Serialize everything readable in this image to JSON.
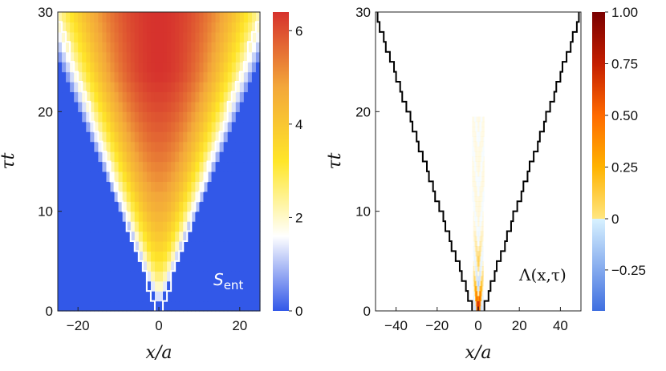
{
  "chart_data": [
    {
      "type": "heatmap",
      "title": "",
      "xlabel": "x/a",
      "ylabel": "τt",
      "xlim": [
        -25,
        25
      ],
      "ylim": [
        0,
        30
      ],
      "xticks": [
        "−20",
        "0",
        "20"
      ],
      "xtick_values": [
        -20,
        0,
        20
      ],
      "yticks": [
        "0",
        "10",
        "20",
        "30"
      ],
      "ytick_values": [
        0,
        10,
        20,
        30
      ],
      "annotation": "S",
      "annotation_sub": "ent",
      "lightcone_color": "#ffffff",
      "colorbar": {
        "min": 0,
        "max": 6.4,
        "ticks": [
          "0",
          "2",
          "4",
          "6"
        ],
        "tick_values": [
          0,
          2,
          4,
          6
        ],
        "colors": [
          "#3258e8",
          "#ffffff",
          "#ffe629",
          "#f3a73a",
          "#d6322d"
        ]
      }
    },
    {
      "type": "heatmap",
      "title": "",
      "xlabel": "x/a",
      "ylabel": "τt",
      "xlim": [
        -50,
        50
      ],
      "ylim": [
        0,
        30
      ],
      "xticks": [
        "−40",
        "−20",
        "0",
        "20",
        "40"
      ],
      "xtick_values": [
        -40,
        -20,
        0,
        20,
        40
      ],
      "yticks": [
        "0",
        "10",
        "20",
        "30"
      ],
      "ytick_values": [
        0,
        10,
        20,
        30
      ],
      "annotation": "Λ(x,τ)",
      "lightcone_color": "#000000",
      "colorbar": {
        "min": -0.45,
        "max": 1.0,
        "ticks": [
          "−0.25",
          "0",
          "0.25",
          "0.50",
          "0.75",
          "1.00"
        ],
        "tick_values": [
          -0.25,
          0,
          0.25,
          0.5,
          0.75,
          1.0
        ],
        "colors_negative": [
          "#3f6fe0",
          "#d8f2ff"
        ],
        "colors_positive": [
          "#ffe680",
          "#ffb300",
          "#ff6a00",
          "#c41e00",
          "#7a0000"
        ]
      }
    }
  ]
}
